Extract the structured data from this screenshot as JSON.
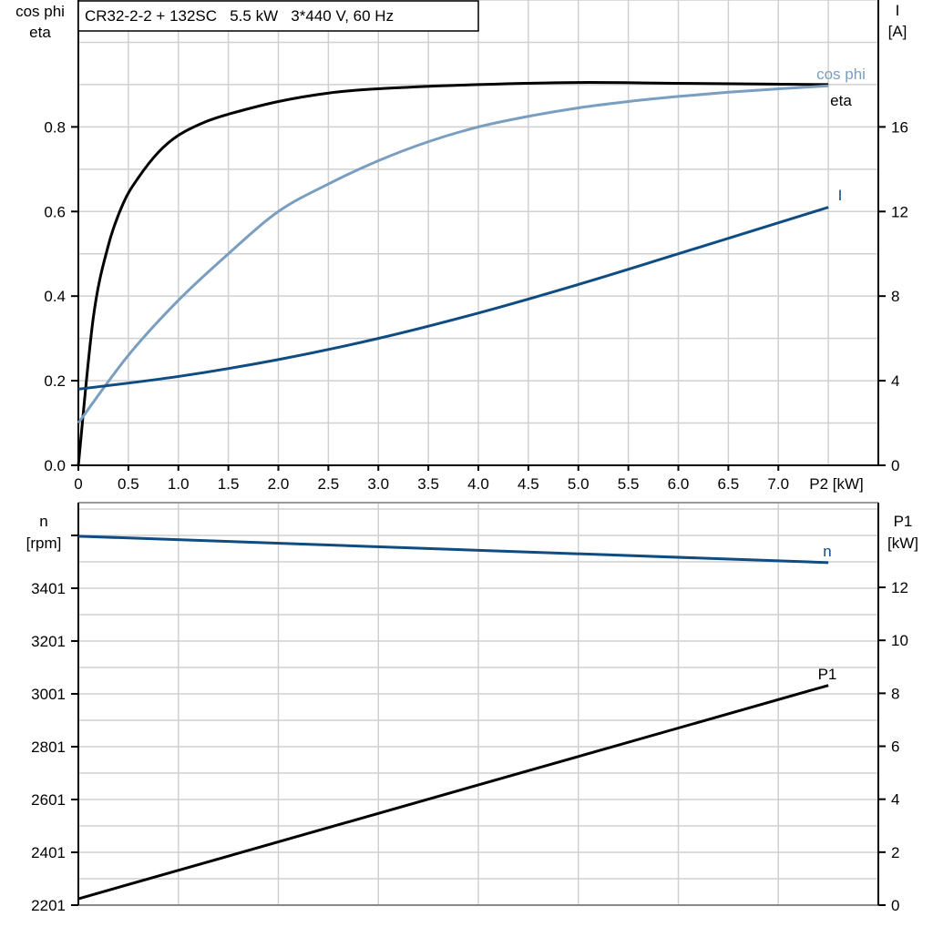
{
  "title": "CR32-2-2 + 132SC   5.5 kW   3*440 V, 60 Hz",
  "colors": {
    "eta": "#000000",
    "cos_phi": "#7a9ebf",
    "I": "#0f4c81",
    "n": "#0f4c81",
    "P1": "#000000",
    "grid": "#d0d0d0"
  },
  "chart_data": [
    {
      "type": "line",
      "xlabel": "P2 [kW]",
      "xlim": [
        0,
        8.0
      ],
      "x_ticks": [
        "0",
        "0.5",
        "1.0",
        "1.5",
        "2.0",
        "2.5",
        "3.0",
        "3.5",
        "4.0",
        "4.5",
        "5.0",
        "5.5",
        "6.0",
        "6.5",
        "7.0"
      ],
      "ylabel_left": [
        "cos phi",
        "eta"
      ],
      "ylim_left": [
        0,
        1.1
      ],
      "y_ticks_left": [
        "0.0",
        "0.2",
        "0.4",
        "0.6",
        "0.8"
      ],
      "ylabel_right": [
        "I",
        "[A]"
      ],
      "ylim_right": [
        0,
        22
      ],
      "y_ticks_right": [
        "0",
        "4",
        "8",
        "12",
        "16"
      ],
      "grid": true,
      "series": [
        {
          "name": "eta",
          "axis": "left",
          "x": [
            0,
            0.15,
            0.3,
            0.45,
            0.6,
            0.8,
            1.0,
            1.25,
            1.5,
            2.0,
            2.5,
            3.0,
            4.0,
            5.0,
            6.0,
            7.5
          ],
          "y": [
            0,
            0.35,
            0.52,
            0.62,
            0.68,
            0.74,
            0.78,
            0.81,
            0.83,
            0.86,
            0.88,
            0.89,
            0.9,
            0.905,
            0.903,
            0.9
          ]
        },
        {
          "name": "cos phi",
          "axis": "left",
          "x": [
            0,
            0.5,
            1.0,
            1.5,
            2.0,
            2.5,
            3.0,
            3.5,
            4.0,
            4.5,
            5.0,
            5.5,
            6.0,
            6.5,
            7.0,
            7.5
          ],
          "y": [
            0.1,
            0.26,
            0.39,
            0.5,
            0.6,
            0.665,
            0.72,
            0.765,
            0.8,
            0.825,
            0.845,
            0.86,
            0.872,
            0.882,
            0.89,
            0.897
          ]
        },
        {
          "name": "I",
          "axis": "right",
          "x": [
            0,
            1.0,
            2.0,
            3.0,
            4.0,
            5.0,
            6.0,
            7.5
          ],
          "y": [
            3.6,
            4.2,
            5.0,
            6.0,
            7.2,
            8.55,
            10.0,
            12.2
          ]
        }
      ]
    },
    {
      "type": "line",
      "xlim": [
        0,
        8.0
      ],
      "ylabel_left": [
        "n",
        "[rpm]"
      ],
      "ylim_left": [
        2201,
        3725
      ],
      "y_ticks_left": [
        "2201",
        "2401",
        "2601",
        "2801",
        "3001",
        "3201",
        "3401"
      ],
      "ylabel_right": [
        "P1",
        "[kW]"
      ],
      "ylim_right": [
        0,
        15.2
      ],
      "y_ticks_right": [
        "0",
        "2",
        "4",
        "6",
        "8",
        "10",
        "12"
      ],
      "grid": true,
      "series": [
        {
          "name": "n",
          "axis": "left",
          "x": [
            0,
            7.5
          ],
          "y": [
            3598,
            3498
          ]
        },
        {
          "name": "P1",
          "axis": "right",
          "x": [
            0,
            7.5
          ],
          "y": [
            0.24,
            8.3
          ]
        }
      ]
    }
  ]
}
